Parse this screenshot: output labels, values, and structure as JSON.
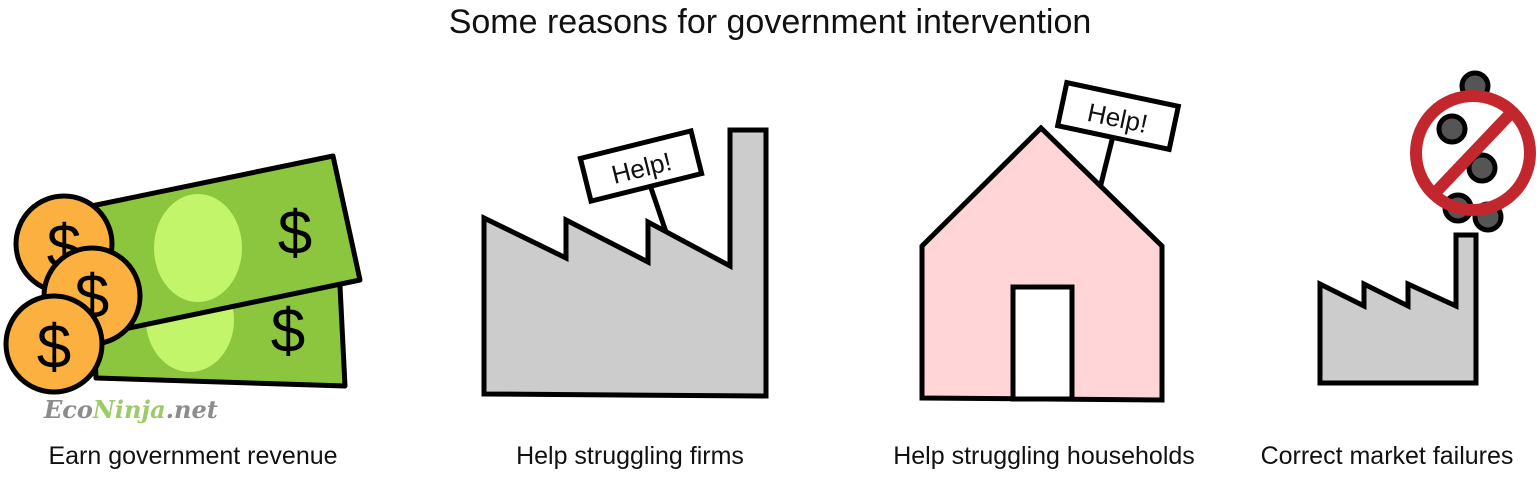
{
  "title": "Some reasons for government intervention",
  "watermark": {
    "part1": "Eco",
    "part2": "Ninja",
    "part3": ".net"
  },
  "panels": [
    {
      "caption": "Earn government revenue",
      "glyph": "$"
    },
    {
      "caption": "Help struggling firms",
      "sign": "Help!"
    },
    {
      "caption": "Help struggling households",
      "sign": "Help!"
    },
    {
      "caption": "Correct market failures"
    }
  ],
  "colors": {
    "money_green": "#8cc63f",
    "money_oval": "#c3f56b",
    "coin": "#fbb040",
    "factory": "#cccccc",
    "house": "#ffd5d8",
    "prohibit": "#c1272d",
    "smoke": "#555555"
  }
}
